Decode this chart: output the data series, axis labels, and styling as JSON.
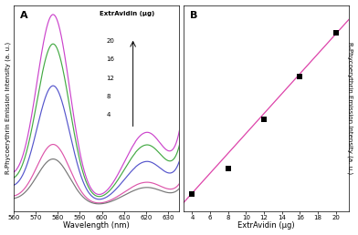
{
  "panel_A": {
    "label": "A",
    "xlabel": "Wavelength (nm)",
    "ylabel": "R-Phycoerythrin Emission Intensity (a. u.)",
    "xlim": [
      560,
      635
    ],
    "xticks": [
      560,
      570,
      580,
      590,
      600,
      610,
      620,
      630
    ],
    "legend_title": "ExtrAvidin (μg)",
    "legend_values": [
      "20",
      "16",
      "12",
      "8",
      "4"
    ],
    "curve_colors": [
      "#cc44cc",
      "#44aa44",
      "#5555cc",
      "#dd55aa",
      "#777777"
    ],
    "curve_amps1": [
      0.92,
      0.78,
      0.58,
      0.3,
      0.23
    ],
    "curve_amps2": [
      0.36,
      0.3,
      0.22,
      0.12,
      0.095
    ],
    "curve_tails": [
      0.05,
      0.04,
      0.03,
      0.015,
      0.012
    ],
    "curve_bg": [
      0.12,
      0.1,
      0.075,
      0.038,
      0.03
    ],
    "background_color": "#ffffff"
  },
  "panel_B": {
    "label": "B",
    "xlabel": "ExtrAvidin (μg)",
    "ylabel": "R-Phycoerythrin Emission Intensity (a. u.)",
    "xlim": [
      3,
      21.5
    ],
    "ylim": [
      -0.05,
      1.05
    ],
    "xticks": [
      4,
      6,
      8,
      10,
      12,
      14,
      16,
      18,
      20
    ],
    "scatter_x": [
      4,
      8,
      12,
      16,
      20
    ],
    "scatter_y": [
      0.04,
      0.18,
      0.44,
      0.67,
      0.9
    ],
    "fit_x_start": 3.0,
    "fit_x_end": 21.5,
    "fit_slope": 0.053,
    "fit_intercept": -0.165,
    "fit_color": "#dd44aa",
    "marker_color": "black",
    "background_color": "#ffffff"
  },
  "figure_bg": "#ffffff"
}
